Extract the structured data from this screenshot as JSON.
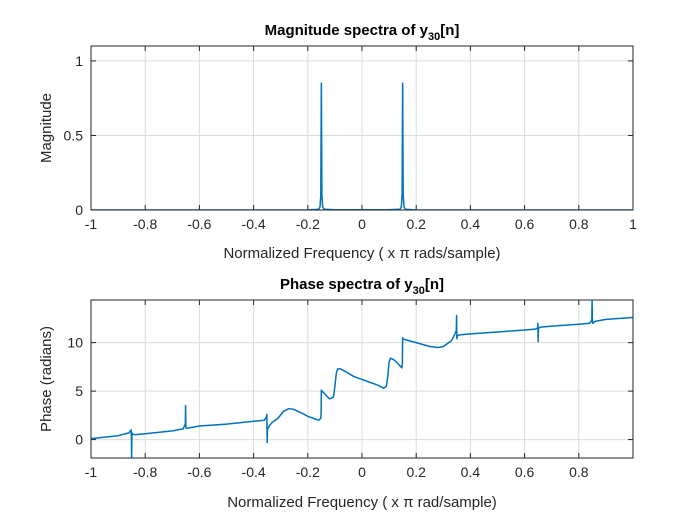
{
  "chart_data": [
    {
      "type": "line",
      "title_main": "Magnitude spectra of y",
      "title_sub": "30",
      "title_tail": "[n]",
      "xlabel": "Normalized Frequency ( x π rads/sample)",
      "ylabel": "Magnitude",
      "xlim": [
        -1,
        1
      ],
      "ylim": [
        0,
        1.1
      ],
      "xticks": [
        -1,
        -0.8,
        -0.6,
        -0.4,
        -0.2,
        0,
        0.2,
        0.4,
        0.6,
        0.8,
        1
      ],
      "xtick_labels": [
        "-1",
        "-0.8",
        "-0.6",
        "-0.4",
        "-0.2",
        "0",
        "0.2",
        "0.4",
        "0.6",
        "0.8",
        "1"
      ],
      "yticks": [
        0,
        0.5,
        1
      ],
      "ytick_labels": [
        "0",
        "0.5",
        "1"
      ],
      "grid": true,
      "color": "#0072bd",
      "x": [
        -1,
        -0.2,
        -0.16,
        -0.155,
        -0.152,
        -0.15,
        -0.148,
        -0.145,
        -0.14,
        -0.1,
        0,
        0.1,
        0.14,
        0.145,
        0.148,
        0.15,
        0.152,
        0.155,
        0.16,
        0.2,
        1
      ],
      "y": [
        0,
        0,
        0.005,
        0.02,
        0.1,
        0.85,
        0.1,
        0.02,
        0.005,
        0.002,
        0.002,
        0.002,
        0.005,
        0.02,
        0.1,
        0.85,
        0.1,
        0.02,
        0.005,
        0,
        0
      ]
    },
    {
      "type": "line",
      "title_main": "Phase spectra of y",
      "title_sub": "30",
      "title_tail": "[n]",
      "xlabel": "Normalized Frequency ( x π rad/sample)",
      "ylabel": "Phase (radians)",
      "xlim": [
        -1,
        1
      ],
      "ylim": [
        -1.9,
        14.4
      ],
      "xticks": [
        -1,
        -0.8,
        -0.6,
        -0.4,
        -0.2,
        0,
        0.2,
        0.4,
        0.6,
        0.8
      ],
      "xtick_labels": [
        "-1",
        "-0.8",
        "-0.6",
        "-0.4",
        "-0.2",
        "0",
        "0.2",
        "0.4",
        "0.6",
        "0.8"
      ],
      "yticks": [
        0,
        5,
        10
      ],
      "ytick_labels": [
        "0",
        "5",
        "10"
      ],
      "grid": true,
      "color": "#0072bd",
      "x": [
        -1,
        -0.9,
        -0.86,
        -0.852,
        -0.851,
        -0.85,
        -0.849,
        -0.848,
        -0.84,
        -0.8,
        -0.7,
        -0.66,
        -0.652,
        -0.651,
        -0.65,
        -0.649,
        -0.648,
        -0.64,
        -0.6,
        -0.5,
        -0.36,
        -0.352,
        -0.351,
        -0.35,
        -0.349,
        -0.348,
        -0.34,
        -0.33,
        -0.31,
        -0.29,
        -0.27,
        -0.25,
        -0.22,
        -0.2,
        -0.18,
        -0.16,
        -0.152,
        -0.151,
        -0.15,
        -0.149,
        -0.147,
        -0.12,
        -0.105,
        -0.1,
        -0.095,
        -0.09,
        -0.08,
        -0.06,
        -0.03,
        0,
        0.03,
        0.06,
        0.08,
        0.09,
        0.095,
        0.1,
        0.105,
        0.12,
        0.147,
        0.149,
        0.15,
        0.151,
        0.152,
        0.16,
        0.2,
        0.25,
        0.28,
        0.3,
        0.33,
        0.345,
        0.348,
        0.349,
        0.35,
        0.351,
        0.352,
        0.36,
        0.4,
        0.5,
        0.6,
        0.64,
        0.648,
        0.649,
        0.65,
        0.651,
        0.652,
        0.66,
        0.7,
        0.8,
        0.84,
        0.848,
        0.849,
        0.85,
        0.851,
        0.852,
        0.86,
        0.9,
        1
      ],
      "y": [
        0.1,
        0.4,
        0.7,
        1.0,
        0.2,
        -2.0,
        0.7,
        0.6,
        0.5,
        0.6,
        0.9,
        1.1,
        1.6,
        3.5,
        1.4,
        1.2,
        1.15,
        1.2,
        1.4,
        1.6,
        2.0,
        2.4,
        2.6,
        -0.3,
        1.0,
        1.1,
        1.5,
        1.8,
        2.2,
        2.9,
        3.2,
        3.1,
        2.7,
        2.4,
        2.2,
        2.0,
        2.2,
        2.6,
        5.1,
        5.0,
        5.0,
        4.2,
        4.4,
        5.5,
        6.8,
        7.3,
        7.3,
        7.0,
        6.5,
        6.2,
        5.9,
        5.6,
        5.3,
        5.5,
        6.5,
        8.0,
        8.4,
        8.2,
        7.4,
        7.9,
        10.5,
        10.4,
        10.4,
        10.3,
        10.0,
        9.6,
        9.5,
        9.6,
        10.2,
        11.0,
        11.3,
        12.8,
        10.4,
        10.6,
        10.7,
        10.8,
        10.9,
        11.1,
        11.3,
        11.4,
        11.5,
        12.0,
        10.1,
        11.5,
        11.5,
        11.6,
        11.7,
        11.9,
        12.0,
        12.3,
        14.3,
        12.5,
        12.0,
        12.0,
        12.2,
        12.4,
        12.6
      ]
    }
  ]
}
